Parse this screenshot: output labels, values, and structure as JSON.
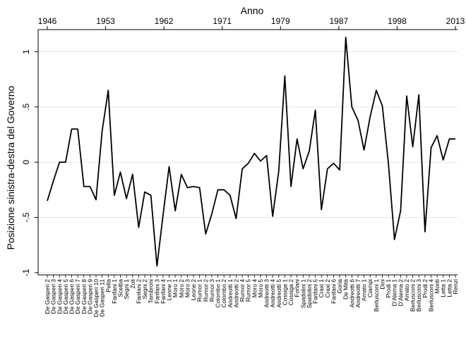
{
  "chart_data": {
    "type": "line",
    "title": "",
    "xlabel": "Anno",
    "ylabel": "Posizione sinistra-destra del Governo",
    "ylim": [
      -1.02,
      1.2
    ],
    "y_ticks": [
      -1,
      -0.5,
      0,
      0.5,
      1
    ],
    "y_tick_labels": [
      "-1",
      "-.5",
      "0",
      ".5",
      "1"
    ],
    "top_ticks": [
      "1946",
      "1953",
      "1962",
      "1971",
      "1979",
      "1987",
      "1998",
      "2013"
    ],
    "grid": true,
    "legend": "none",
    "line_color": "#000000",
    "grid_color": "#dbe8ec",
    "series": [
      {
        "values": [
          -0.35,
          -0.17,
          0.0,
          0.0,
          0.3,
          0.3,
          -0.22,
          -0.22,
          -0.34,
          0.28,
          0.65,
          -0.3,
          -0.09,
          -0.33,
          -0.11,
          -0.59,
          -0.27,
          -0.3,
          -0.94,
          -0.48,
          -0.04,
          -0.44,
          -0.11,
          -0.23,
          -0.22,
          -0.23,
          -0.65,
          -0.47,
          -0.25,
          -0.25,
          -0.3,
          -0.51,
          -0.06,
          -0.01,
          0.08,
          0.01,
          0.06,
          -0.49,
          -0.08,
          0.78,
          -0.22,
          0.21,
          -0.06,
          0.1,
          0.47,
          -0.43,
          -0.06,
          -0.01,
          -0.07,
          1.13,
          0.5,
          0.38,
          0.11,
          0.41,
          0.65,
          0.51,
          -0.01,
          -0.7,
          -0.44,
          0.6,
          0.14,
          0.61,
          -0.63,
          0.13,
          0.24,
          0.02,
          0.21,
          0.21
        ]
      }
    ],
    "categories": [
      "De Gasperi 2",
      "De Gasperi 3",
      "De Gasperi 4",
      "De Gasperi 5",
      "De Gasperi 6",
      "De Gasperi 7",
      "De Gasperi 8",
      "De Gasperi 9",
      "De Gasperi 10",
      "De Gasperi 11",
      "Pella",
      "Fanfani 1",
      "Scelba",
      "Segni 1",
      "Zoli",
      "Fanfani 2",
      "Segni 2",
      "Tambroni",
      "Fanfani 3",
      "Fanfani 4",
      "Leone 1",
      "Moro 1",
      "Moro 2",
      "Moro 3",
      "Leone 2",
      "Rumor 1",
      "Rumor 2",
      "Rumor 3",
      "Colombo 1",
      "Colombo 2",
      "Andreotti 1",
      "Andreotti 2",
      "Rumor 4",
      "Rumor 5",
      "Moro 4",
      "Moro 5",
      "Andreotti 3",
      "Andreotti 4",
      "Andreotti 5",
      "Cossiga 1",
      "Cossiga 2",
      "Forlani",
      "Spadolini 1",
      "Spadolini 2",
      "Fanfani 5",
      "Craxi 1",
      "Craxi 2",
      "Fanfani 6",
      "Goria",
      "De Mita",
      "Andreotti 6",
      "Andreotti 7",
      "Amato 1",
      "Ciampi",
      "Berlusconi 1",
      "Dini",
      "Prodi 1",
      "D'Alema 1",
      "D'Alema 2",
      "Amato 2",
      "Berlusconi 2",
      "Berlusconi 3",
      "Prodi 2",
      "Berlusconi 4",
      "Monti",
      "Letta 1",
      "Letta 2",
      "Renzi"
    ]
  }
}
